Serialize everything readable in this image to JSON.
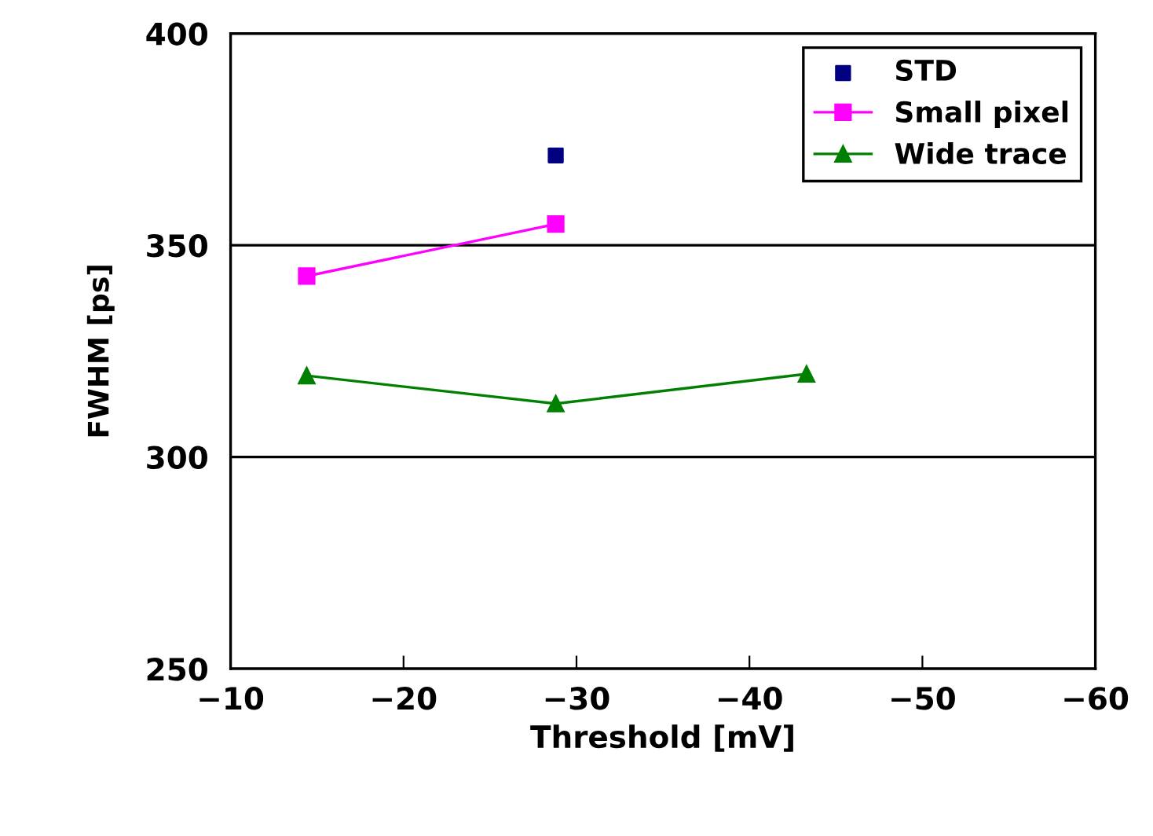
{
  "chart_data": {
    "type": "line",
    "xlabel": "Threshold [mV]",
    "ylabel": "FWHM [ps]",
    "xlim": [
      -10,
      -60
    ],
    "xticks": [
      -10,
      -20,
      -30,
      -40,
      -50,
      -60
    ],
    "ylim": [
      250,
      400
    ],
    "yticks": [
      250,
      300,
      350,
      400
    ],
    "grid": "y",
    "legend": "top right",
    "series": [
      {
        "name": "STD",
        "type": "scatter",
        "color": "#000080",
        "marker": "square",
        "x": [
          -28.8
        ],
        "values": [
          371.2
        ]
      },
      {
        "name": "Small pixel",
        "color": "#ff00ff",
        "marker": "square",
        "x": [
          -14.4,
          -28.8
        ],
        "values": [
          342.7,
          355
        ]
      },
      {
        "name": "Wide trace",
        "color": "#008000",
        "marker": "triangle",
        "x": [
          -14.4,
          -28.8,
          -43.3
        ],
        "values": [
          319.2,
          312.6,
          319.6
        ]
      }
    ]
  }
}
